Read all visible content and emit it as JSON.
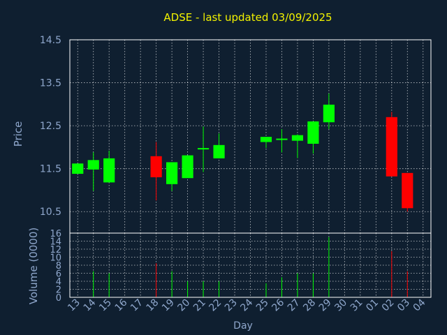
{
  "chart_data": {
    "type": "candlestick",
    "title": "ADSE - last updated 03/09/2025",
    "xlabel": "Day",
    "ylabel_price": "Price",
    "ylabel_volume": "Volume (0000)",
    "price_ylim": [
      10.0,
      14.5
    ],
    "price_ticks": [
      "14.5",
      "13.5",
      "12.5",
      "11.5",
      "10.5"
    ],
    "volume_ylim": [
      0,
      16
    ],
    "volume_ticks": [
      "16",
      "14",
      "12",
      "10",
      "8",
      "6",
      "4",
      "2",
      "0"
    ],
    "x_labels": [
      "13",
      "14",
      "15",
      "16",
      "17",
      "18",
      "19",
      "20",
      "21",
      "22",
      "23",
      "24",
      "25",
      "26",
      "27",
      "28",
      "29",
      "30",
      "31",
      "01",
      "02",
      "03",
      "04"
    ],
    "grid": true,
    "colors": {
      "up": "#00ff00",
      "down": "#ff0000",
      "title": "#f2f200",
      "text": "#8fa7cc",
      "background": "#0f1f30"
    },
    "candles": [
      {
        "day": "13",
        "open": 11.38,
        "close": 11.62,
        "high": 11.62,
        "low": 11.38,
        "volume": 0
      },
      {
        "day": "14",
        "open": 11.48,
        "close": 11.7,
        "high": 11.88,
        "low": 10.98,
        "volume": 6.5
      },
      {
        "day": "15",
        "open": 11.18,
        "close": 11.74,
        "high": 11.92,
        "low": 11.18,
        "volume": 6
      },
      {
        "day": "18",
        "open": 11.79,
        "close": 11.3,
        "high": 12.12,
        "low": 10.76,
        "volume": 8.5
      },
      {
        "day": "19",
        "open": 11.14,
        "close": 11.65,
        "high": 11.65,
        "low": 10.98,
        "volume": 6.5
      },
      {
        "day": "20",
        "open": 11.28,
        "close": 11.81,
        "high": 11.81,
        "low": 11.28,
        "volume": 4
      },
      {
        "day": "21",
        "open": 11.95,
        "close": 11.98,
        "high": 12.48,
        "low": 11.42,
        "volume": 4
      },
      {
        "day": "22",
        "open": 11.74,
        "close": 12.05,
        "high": 12.32,
        "low": 11.74,
        "volume": 4
      },
      {
        "day": "25",
        "open": 12.12,
        "close": 12.24,
        "high": 12.24,
        "low": 11.98,
        "volume": 3.5
      },
      {
        "day": "26",
        "open": 12.17,
        "close": 12.2,
        "high": 12.42,
        "low": 11.88,
        "volume": 5
      },
      {
        "day": "27",
        "open": 12.15,
        "close": 12.28,
        "high": 12.3,
        "low": 11.75,
        "volume": 6
      },
      {
        "day": "28",
        "open": 12.08,
        "close": 12.6,
        "high": 12.6,
        "low": 11.85,
        "volume": 6
      },
      {
        "day": "29",
        "open": 12.58,
        "close": 12.99,
        "high": 13.25,
        "low": 12.42,
        "volume": 15
      },
      {
        "day": "02",
        "open": 12.7,
        "close": 11.32,
        "high": 12.82,
        "low": 11.32,
        "volume": 11.5
      },
      {
        "day": "03",
        "open": 11.4,
        "close": 10.58,
        "high": 11.4,
        "low": 10.5,
        "volume": 6.5
      }
    ]
  }
}
